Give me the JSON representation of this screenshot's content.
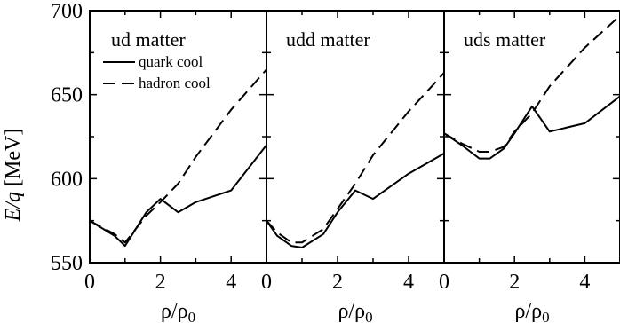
{
  "chart_data": {
    "type": "line",
    "ylabel": "E/q [MeV]",
    "ylabel_parts": {
      "italic": "E/q",
      "unit": "[MeV]"
    },
    "xlabel": "ρ/ρ0",
    "xlabel_parts": {
      "base": "ρ/ρ",
      "sub": "0"
    },
    "ylim": [
      550,
      700
    ],
    "yticks": [
      550,
      600,
      650,
      700
    ],
    "xlim": [
      0,
      5
    ],
    "xticks": [
      0,
      2,
      4
    ],
    "legend": {
      "panel": 0,
      "entries": [
        {
          "label": "quark cool",
          "style": "solid"
        },
        {
          "label": "hadron cool",
          "style": "dashed"
        }
      ]
    },
    "panels": [
      {
        "title": "ud matter",
        "series": [
          {
            "name": "quark cool",
            "style": "solid",
            "x": [
              0,
              0.7,
              1.0,
              1.6,
              2.0,
              2.5,
              3.0,
              4.0,
              5.0
            ],
            "y": [
              575,
              566,
              560,
              580,
              588,
              580,
              586,
              593,
              620
            ]
          },
          {
            "name": "hadron cool",
            "style": "dashed",
            "x": [
              0,
              0.7,
              1.0,
              1.6,
              2.0,
              2.5,
              3.0,
              4.0,
              5.0
            ],
            "y": [
              575,
              567,
              562,
              578,
              586,
              597,
              613,
              641,
              665
            ]
          }
        ]
      },
      {
        "title": "udd matter",
        "series": [
          {
            "name": "quark cool",
            "style": "solid",
            "x": [
              0,
              0.3,
              0.7,
              1.0,
              1.6,
              2.0,
              2.5,
              3.0,
              4.0,
              5.0
            ],
            "y": [
              575,
              566,
              560,
              559,
              567,
              580,
              593,
              588,
              603,
              615
            ]
          },
          {
            "name": "hadron cool",
            "style": "dashed",
            "x": [
              0,
              0.3,
              0.7,
              1.0,
              1.6,
              2.0,
              2.5,
              3.0,
              4.0,
              5.0
            ],
            "y": [
              575,
              568,
              562,
              562,
              570,
              582,
              597,
              614,
              640,
              663
            ]
          }
        ]
      },
      {
        "title": "uds matter",
        "series": [
          {
            "name": "quark cool",
            "style": "solid",
            "x": [
              0,
              0.5,
              1.0,
              1.3,
              1.7,
              2.0,
              2.5,
              3.0,
              4.0,
              5.0
            ],
            "y": [
              627,
              620,
              612,
              612,
              618,
              627,
              643,
              628,
              633,
              649
            ]
          },
          {
            "name": "hadron cool",
            "style": "dashed",
            "x": [
              0,
              0.5,
              1.0,
              1.3,
              1.7,
              2.0,
              2.5,
              3.0,
              4.0,
              5.0
            ],
            "y": [
              627,
              621,
              616,
              616,
              619,
              628,
              639,
              655,
              678,
              697
            ]
          }
        ]
      }
    ]
  }
}
